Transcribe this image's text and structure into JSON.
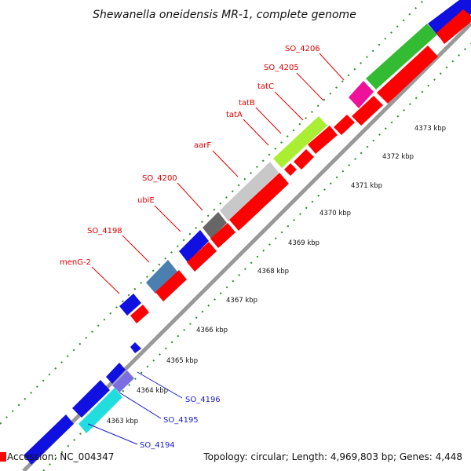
{
  "title": "Shewanella oneidensis MR-1, complete genome",
  "footer": {
    "accession": "Accession: NC_004347",
    "topology": "Topology: circular; Length: 4,969,803 bp; Genes: 4,448"
  },
  "ticks": [
    "4363 kbp",
    "4364 kbp",
    "4365 kbp",
    "4366 kbp",
    "4367 kbp",
    "4368 kbp",
    "4369 kbp",
    "4370 kbp",
    "4371 kbp",
    "4372 kbp",
    "4373 kbp"
  ],
  "gene_labels_top": [
    "SO_4206",
    "SO_4205",
    "tatC",
    "tatB",
    "tatA",
    "aarF",
    "SO_4200",
    "ubiE",
    "SO_4198",
    "menG-2"
  ],
  "gene_labels_bottom": [
    "SO_4196",
    "SO_4195",
    "SO_4194"
  ],
  "colors": {
    "forward_track": "#ff0000",
    "reverse_track_blue": "#1010e0",
    "green": "#33bb33",
    "magenta": "#ee1199",
    "lime": "#aaee33",
    "light_gray": "#c8c8c8",
    "dark_gray": "#666666",
    "steel_blue": "#4a7fb0",
    "cyan": "#22dddd",
    "lavender": "#7b6ee0",
    "axis": "#888888",
    "tick": "#2a8a2a"
  }
}
